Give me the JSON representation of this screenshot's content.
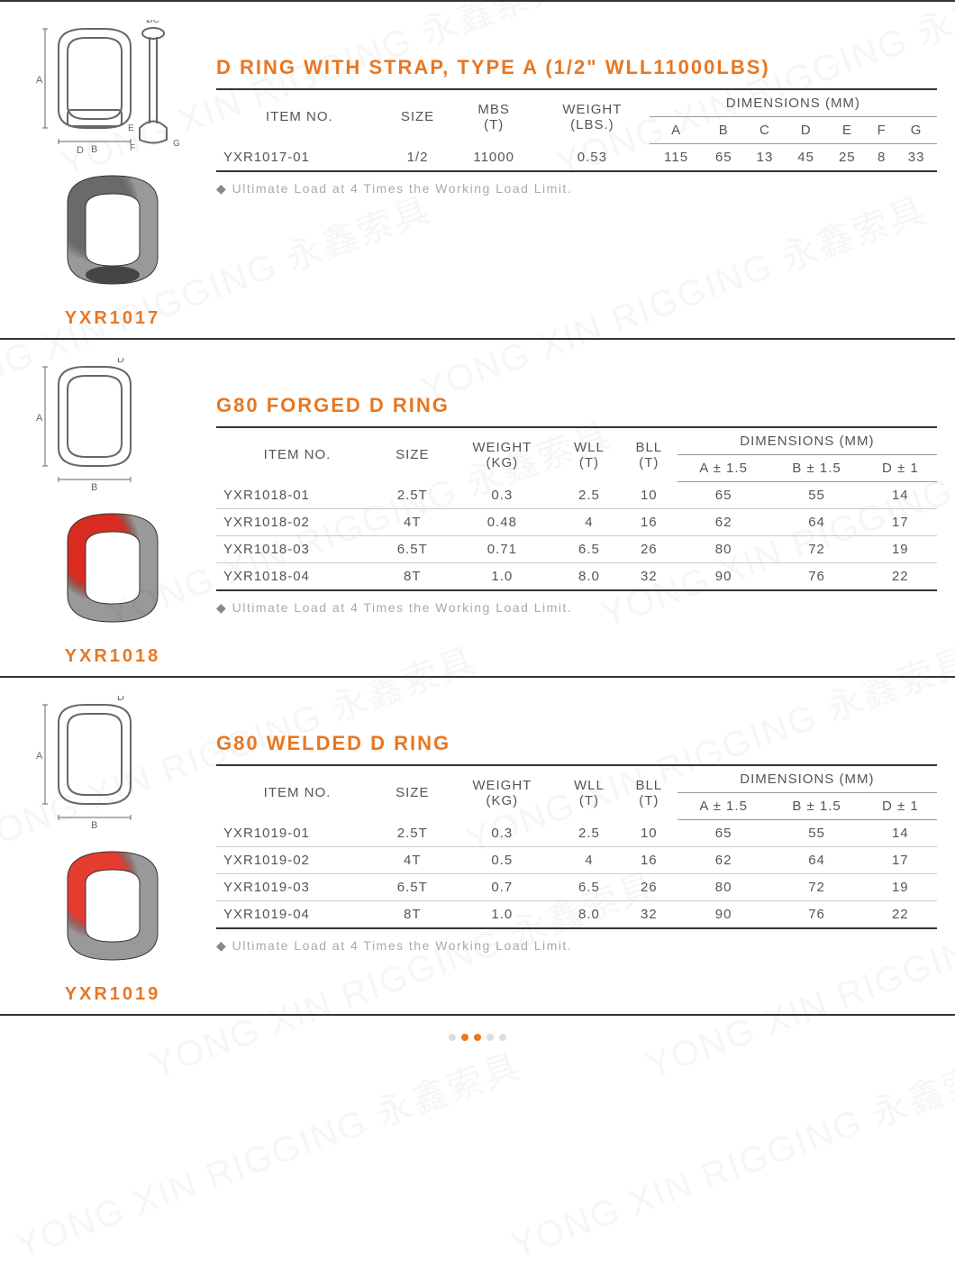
{
  "colors": {
    "accent": "#e87722",
    "text": "#555555",
    "muted": "#aaaaaa",
    "border_dark": "#333333"
  },
  "watermark_text": "YONG XIN RIGGING 永鑫索具",
  "note_text": "Ultimate Load at 4 Times the Working Load Limit.",
  "products": [
    {
      "code": "YXR1017",
      "title": "D RING WITH STRAP, TYPE A (1/2\" WLL11000LBS)",
      "table": {
        "header_group": "DIMENSIONS (MM)",
        "columns": [
          "ITEM NO.",
          "SIZE",
          "MBS (T)",
          "WEIGHT (LBS.)",
          "A",
          "B",
          "C",
          "D",
          "E",
          "F",
          "G"
        ],
        "group_start": 4,
        "rows": [
          [
            "YXR1017-01",
            "1/2",
            "11000",
            "0.53",
            "115",
            "65",
            "13",
            "45",
            "25",
            "8",
            "33"
          ]
        ]
      },
      "diagram_labels": [
        "A",
        "B",
        "D",
        "E",
        "F",
        "G",
        "ØC"
      ],
      "photo_color": "#6a6a6a"
    },
    {
      "code": "YXR1018",
      "title": "G80 FORGED D RING",
      "table": {
        "header_group": "DIMENSIONS (MM)",
        "columns": [
          "ITEM NO.",
          "SIZE",
          "WEIGHT (KG)",
          "WLL (T)",
          "BLL (T)",
          "A ± 1.5",
          "B ± 1.5",
          "D ± 1"
        ],
        "group_start": 5,
        "rows": [
          [
            "YXR1018-01",
            "2.5T",
            "0.3",
            "2.5",
            "10",
            "65",
            "55",
            "14"
          ],
          [
            "YXR1018-02",
            "4T",
            "0.48",
            "4",
            "16",
            "62",
            "64",
            "17"
          ],
          [
            "YXR1018-03",
            "6.5T",
            "0.71",
            "6.5",
            "26",
            "80",
            "72",
            "19"
          ],
          [
            "YXR1018-04",
            "8T",
            "1.0",
            "8.0",
            "32",
            "90",
            "76",
            "22"
          ]
        ]
      },
      "diagram_labels": [
        "A",
        "B",
        "D"
      ],
      "photo_color": "#d92b1f"
    },
    {
      "code": "YXR1019",
      "title": "G80 WELDED D RING",
      "table": {
        "header_group": "DIMENSIONS (MM)",
        "columns": [
          "ITEM NO.",
          "SIZE",
          "WEIGHT (KG)",
          "WLL (T)",
          "BLL (T)",
          "A ± 1.5",
          "B ± 1.5",
          "D ± 1"
        ],
        "group_start": 5,
        "rows": [
          [
            "YXR1019-01",
            "2.5T",
            "0.3",
            "2.5",
            "10",
            "65",
            "55",
            "14"
          ],
          [
            "YXR1019-02",
            "4T",
            "0.5",
            "4",
            "16",
            "62",
            "64",
            "17"
          ],
          [
            "YXR1019-03",
            "6.5T",
            "0.7",
            "6.5",
            "26",
            "80",
            "72",
            "19"
          ],
          [
            "YXR1019-04",
            "8T",
            "1.0",
            "8.0",
            "32",
            "90",
            "76",
            "22"
          ]
        ]
      },
      "diagram_labels": [
        "A",
        "B",
        "D"
      ],
      "photo_color": "#e63c2f"
    }
  ],
  "pager": {
    "dots": 5,
    "active": [
      1,
      2
    ]
  }
}
